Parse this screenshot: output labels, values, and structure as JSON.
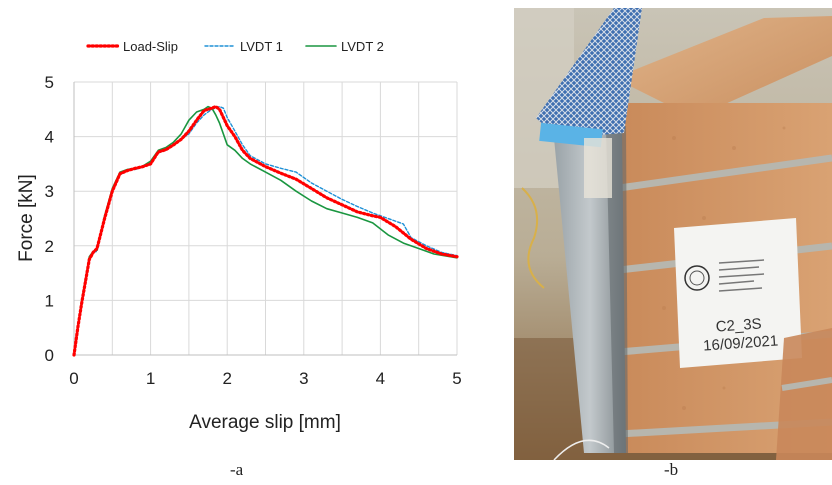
{
  "chart_data": {
    "type": "line",
    "xlabel": "Average slip [mm]",
    "ylabel": "Force [kN]",
    "xlim": [
      0,
      5
    ],
    "ylim": [
      0,
      5
    ],
    "x_ticks": [
      "0",
      "1",
      "2",
      "3",
      "4",
      "5"
    ],
    "y_ticks": [
      "0",
      "1",
      "2",
      "3",
      "4",
      "5"
    ],
    "grid": true,
    "legend_position": "top",
    "series": [
      {
        "name": "Load-Slip",
        "color": "#ff0000",
        "style": "dotted",
        "x": [
          0,
          0.05,
          0.1,
          0.15,
          0.2,
          0.25,
          0.3,
          0.4,
          0.5,
          0.6,
          0.7,
          0.8,
          0.9,
          1.0,
          1.1,
          1.2,
          1.3,
          1.4,
          1.5,
          1.6,
          1.7,
          1.8,
          1.85,
          1.9,
          2.0,
          2.1,
          2.2,
          2.3,
          2.5,
          2.7,
          2.9,
          3.1,
          3.3,
          3.5,
          3.7,
          3.9,
          4.0,
          4.2,
          4.4,
          4.6,
          4.8,
          5.0
        ],
        "y": [
          0,
          0.5,
          0.95,
          1.35,
          1.75,
          1.88,
          1.95,
          2.5,
          3.0,
          3.32,
          3.38,
          3.42,
          3.45,
          3.5,
          3.72,
          3.76,
          3.85,
          3.95,
          4.1,
          4.3,
          4.48,
          4.52,
          4.55,
          4.5,
          4.2,
          4.0,
          3.75,
          3.6,
          3.45,
          3.33,
          3.22,
          3.05,
          2.88,
          2.75,
          2.62,
          2.55,
          2.52,
          2.35,
          2.12,
          1.95,
          1.85,
          1.8
        ]
      },
      {
        "name": "LVDT 1",
        "color": "#1e90d6",
        "style": "dashed",
        "x": [
          0,
          0.05,
          0.1,
          0.15,
          0.2,
          0.25,
          0.3,
          0.4,
          0.5,
          0.6,
          0.7,
          0.8,
          0.9,
          1.0,
          1.1,
          1.2,
          1.3,
          1.4,
          1.5,
          1.6,
          1.7,
          1.8,
          1.9,
          1.95,
          2.0,
          2.1,
          2.2,
          2.3,
          2.5,
          2.7,
          2.9,
          3.1,
          3.3,
          3.5,
          3.7,
          3.9,
          4.1,
          4.3,
          4.4,
          4.6,
          4.8,
          5.0
        ],
        "y": [
          0,
          0.5,
          0.95,
          1.35,
          1.75,
          1.88,
          1.9,
          2.5,
          3.0,
          3.3,
          3.38,
          3.4,
          3.44,
          3.5,
          3.7,
          3.75,
          3.85,
          3.95,
          4.05,
          4.25,
          4.4,
          4.5,
          4.55,
          4.52,
          4.35,
          4.1,
          3.85,
          3.65,
          3.5,
          3.42,
          3.35,
          3.15,
          3.0,
          2.85,
          2.72,
          2.6,
          2.5,
          2.4,
          2.15,
          2.0,
          1.88,
          1.82
        ]
      },
      {
        "name": "LVDT 2",
        "color": "#1a9640",
        "style": "solid",
        "x": [
          0,
          0.05,
          0.1,
          0.15,
          0.2,
          0.25,
          0.3,
          0.4,
          0.5,
          0.6,
          0.7,
          0.8,
          0.9,
          1.0,
          1.1,
          1.2,
          1.3,
          1.4,
          1.5,
          1.6,
          1.7,
          1.75,
          1.8,
          1.85,
          1.9,
          2.0,
          2.1,
          2.2,
          2.3,
          2.5,
          2.7,
          2.9,
          3.1,
          3.3,
          3.5,
          3.7,
          3.9,
          4.1,
          4.3,
          4.5,
          4.7,
          5.0
        ],
        "y": [
          0,
          0.52,
          1.0,
          1.4,
          1.8,
          1.9,
          1.92,
          2.55,
          3.05,
          3.35,
          3.4,
          3.42,
          3.46,
          3.55,
          3.75,
          3.8,
          3.9,
          4.05,
          4.3,
          4.45,
          4.5,
          4.55,
          4.52,
          4.4,
          4.25,
          3.85,
          3.75,
          3.6,
          3.5,
          3.35,
          3.2,
          3.0,
          2.82,
          2.68,
          2.6,
          2.52,
          2.42,
          2.2,
          2.05,
          1.95,
          1.85,
          1.78
        ]
      }
    ]
  },
  "captions": {
    "a": "-a",
    "b": "-b"
  },
  "photo": {
    "label_line_1": "C2_3S",
    "label_line_2": "16/09/2021"
  }
}
